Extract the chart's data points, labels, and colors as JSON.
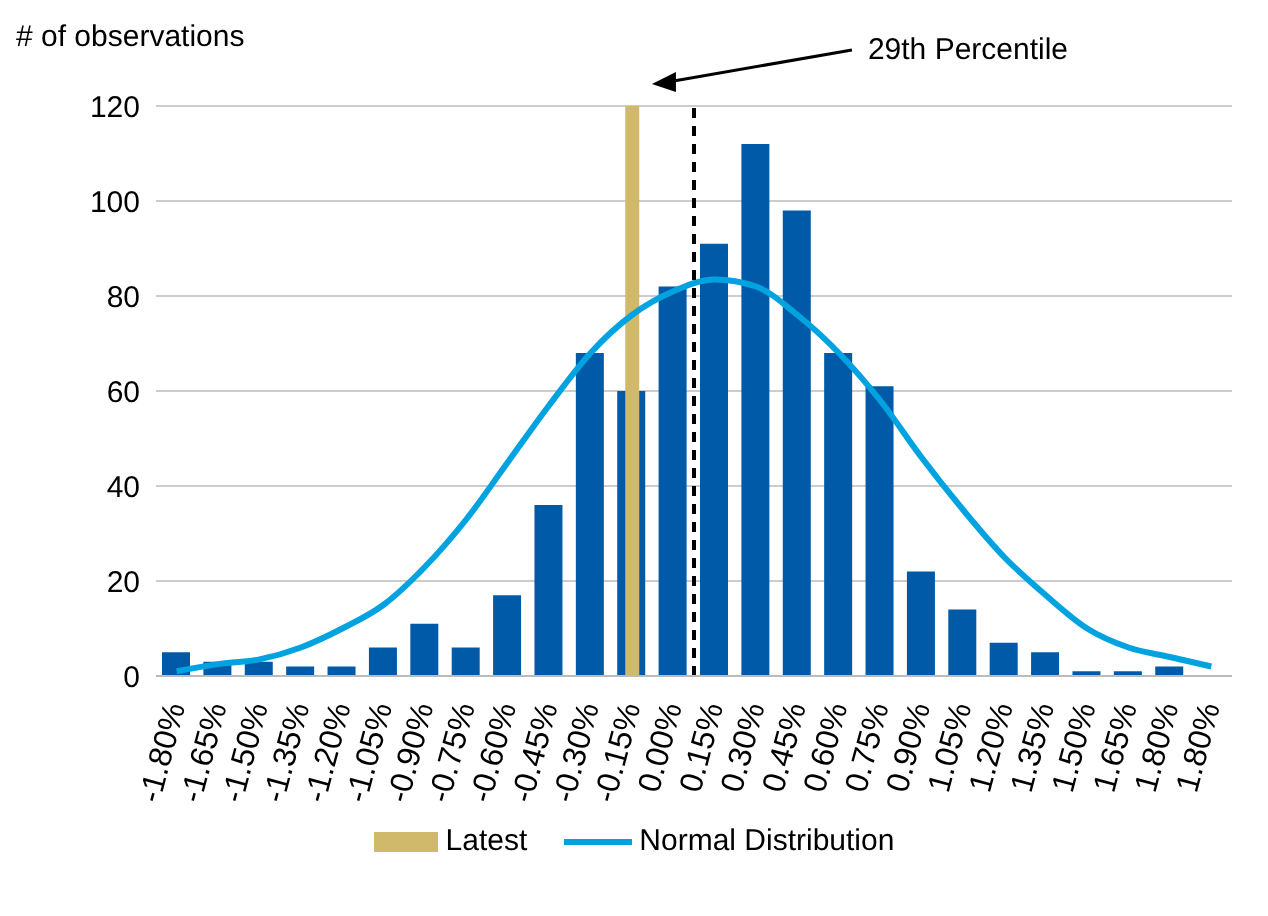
{
  "chart_data": {
    "type": "bar",
    "ylabel": "# of observations",
    "categories": [
      "-1.80%",
      "-1.65%",
      "-1.50%",
      "-1.35%",
      "-1.20%",
      "-1.05%",
      "-0.90%",
      "-0.75%",
      "-0.60%",
      "-0.45%",
      "-0.30%",
      "-0.15%",
      "0.00%",
      "0.15%",
      "0.30%",
      "0.45%",
      "0.60%",
      "0.75%",
      "0.90%",
      "1.05%",
      "1.20%",
      "1.35%",
      "1.50%",
      "1.65%",
      "1.80%",
      "1.80%"
    ],
    "series": [
      {
        "color": "#005aa7",
        "values": [
          5,
          3,
          3,
          2,
          2,
          6,
          11,
          6,
          17,
          36,
          68,
          60,
          82,
          91,
          112,
          98,
          68,
          61,
          22,
          14,
          7,
          5,
          1,
          1,
          2,
          null
        ]
      },
      {
        "name": "Latest",
        "color": "#d1b96b",
        "values": [
          null,
          null,
          null,
          null,
          null,
          null,
          null,
          null,
          null,
          null,
          null,
          120,
          null,
          null,
          null,
          null,
          null,
          null,
          null,
          null,
          null,
          null,
          null,
          null,
          null,
          null
        ]
      },
      {
        "type": "line",
        "name": "Normal Distribution",
        "color": "#00a3e0",
        "values": [
          1,
          2.5,
          3.5,
          6,
          10,
          15,
          23,
          33,
          45,
          57,
          68,
          76,
          81,
          83.5,
          82,
          76,
          68,
          58,
          46,
          35,
          25,
          17,
          10,
          6,
          4,
          2
        ]
      }
    ],
    "ylim": [
      0,
      120
    ],
    "yticks": [
      0,
      20,
      40,
      60,
      80,
      100,
      120
    ],
    "grid": "y",
    "legend": "bottom",
    "marker": "none",
    "ref_lines": [
      {
        "axis": "x",
        "value": "0.00%",
        "color": "#000000",
        "line_style": "dashed"
      }
    ],
    "annotations": [
      "29th Percentile"
    ]
  }
}
